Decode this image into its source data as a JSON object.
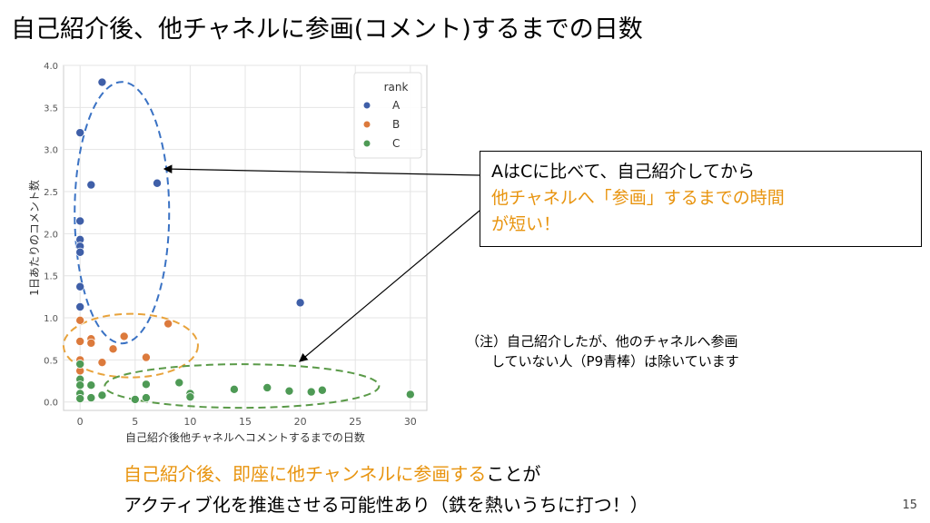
{
  "slide": {
    "title": "自己紹介後、他チャネルに参画(コメント)するまでの日数",
    "page_number": "15"
  },
  "callout": {
    "line1": "AはCに比べて、自己紹介してから",
    "line2": "他チャネルへ「参画」するまでの時間",
    "line3": "が短い！"
  },
  "note": {
    "line1": "（注）自己紹介したが、他のチャネルへ参画",
    "line2": "していない人（P9青棒）は除いています"
  },
  "bottom": {
    "highlight": "自己紹介後、即座に他チャンネルに参画する",
    "rest1": "ことが",
    "line2": "アクティブ化を推進させる可能性あり（鉄を熱いうちに打つ！）"
  },
  "colors": {
    "A": "#3f5fa8",
    "B": "#dc7a3c",
    "C": "#4e9a55",
    "accent_orange": "#e8940f",
    "ellipse_blue": "#3a72c4",
    "ellipse_orange": "#e8a33c",
    "ellipse_green": "#5a9a48"
  },
  "chart_data": {
    "type": "scatter",
    "xlabel": "自己紹介後他チャネルへコメントするまでの日数",
    "ylabel": "1日あたりのコメント数",
    "xlim": [
      -1.5,
      31.5
    ],
    "ylim": [
      -0.1,
      4.0
    ],
    "xticks": [
      0,
      5,
      10,
      15,
      20,
      25,
      30
    ],
    "yticks": [
      0.0,
      0.5,
      1.0,
      1.5,
      2.0,
      2.5,
      3.0,
      3.5,
      4.0
    ],
    "grid": true,
    "legend": {
      "title": "rank",
      "placement": "top-right",
      "entries": [
        "A",
        "B",
        "C"
      ]
    },
    "series": [
      {
        "name": "A",
        "points": [
          [
            2,
            3.8
          ],
          [
            0,
            3.2
          ],
          [
            1,
            2.58
          ],
          [
            7,
            2.6
          ],
          [
            0,
            2.15
          ],
          [
            0,
            1.93
          ],
          [
            0,
            1.85
          ],
          [
            0,
            1.78
          ],
          [
            0,
            1.37
          ],
          [
            0,
            1.13
          ],
          [
            20,
            1.18
          ]
        ]
      },
      {
        "name": "B",
        "points": [
          [
            0,
            0.97
          ],
          [
            8,
            0.93
          ],
          [
            4,
            0.78
          ],
          [
            0,
            0.72
          ],
          [
            1,
            0.75
          ],
          [
            1,
            0.7
          ],
          [
            3,
            0.63
          ],
          [
            6,
            0.53
          ],
          [
            0,
            0.5
          ],
          [
            2,
            0.47
          ],
          [
            0,
            0.37
          ]
        ]
      },
      {
        "name": "C",
        "points": [
          [
            0,
            0.45
          ],
          [
            0,
            0.27
          ],
          [
            0,
            0.2
          ],
          [
            0,
            0.1
          ],
          [
            0,
            0.04
          ],
          [
            1,
            0.2
          ],
          [
            1,
            0.05
          ],
          [
            2,
            0.08
          ],
          [
            5,
            0.03
          ],
          [
            6,
            0.05
          ],
          [
            6,
            0.21
          ],
          [
            9,
            0.23
          ],
          [
            10,
            0.1
          ],
          [
            10,
            0.06
          ],
          [
            14,
            0.15
          ],
          [
            17,
            0.17
          ],
          [
            19,
            0.13
          ],
          [
            21,
            0.12
          ],
          [
            22,
            0.14
          ],
          [
            30,
            0.09
          ]
        ]
      }
    ]
  }
}
